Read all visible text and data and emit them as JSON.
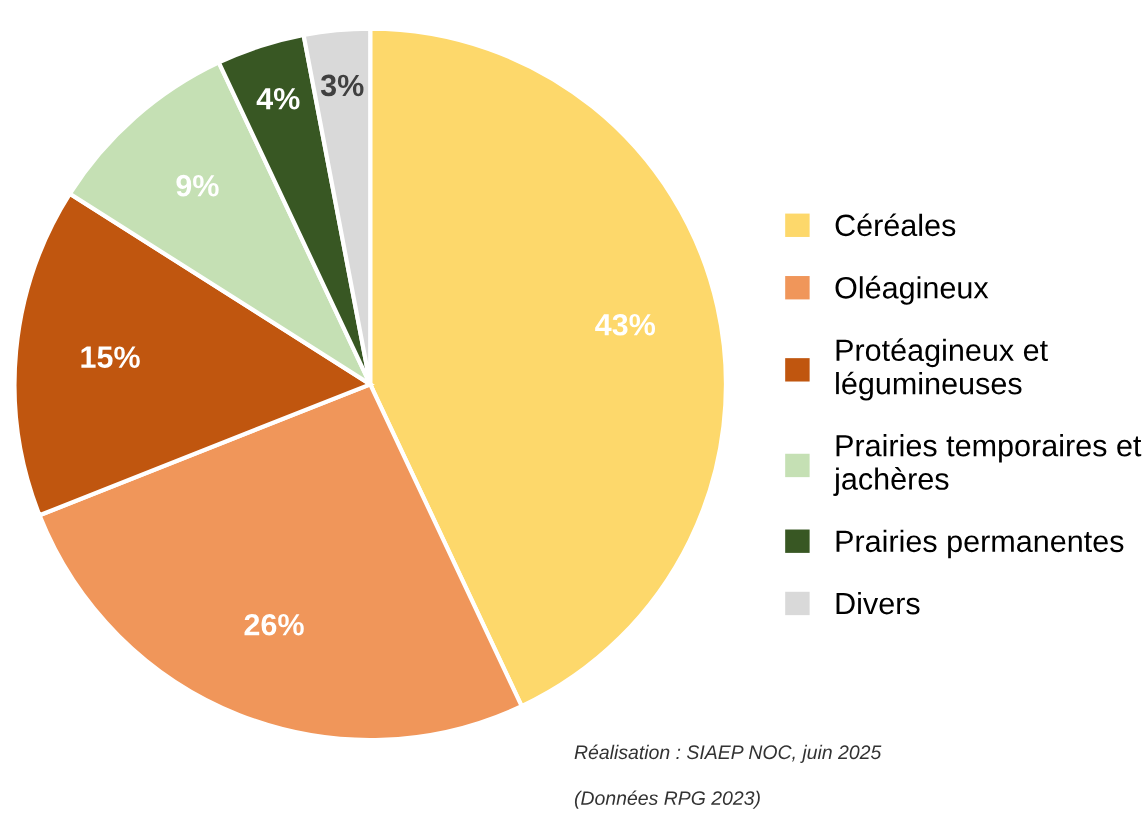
{
  "chart_data": {
    "type": "pie",
    "categories": [
      "Céréales",
      "Oléagineux",
      "Protéagineux et\nlégumineuses",
      "Prairies temporaires et\njachères",
      "Prairies permanentes",
      "Divers"
    ],
    "values": [
      43,
      26,
      15,
      9,
      4,
      3
    ],
    "colors": [
      "#fdd86b",
      "#f0965a",
      "#c0560f",
      "#c5e0b4",
      "#385723",
      "#d9d9d9"
    ],
    "value_labels": [
      "43%",
      "26%",
      "15%",
      "9%",
      "4%",
      "3%"
    ],
    "legend": "right",
    "annotations": [
      "Réalisation : SIAEP NOC, juin 2025",
      "(Données RPG 2023)"
    ]
  }
}
